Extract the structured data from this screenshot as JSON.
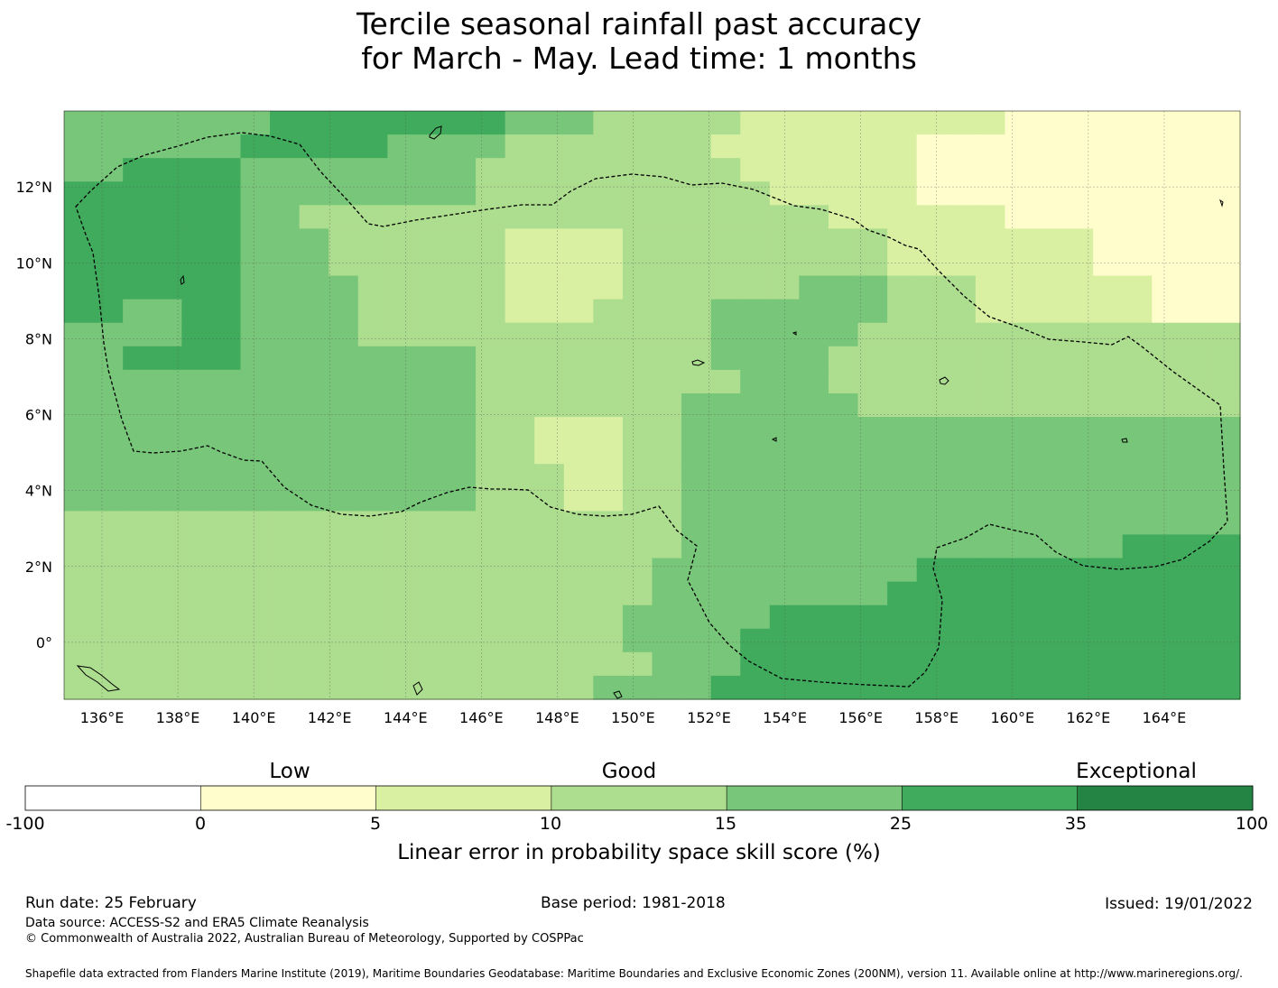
{
  "title": {
    "line1": "Tercile seasonal rainfall past accuracy",
    "line2": "for March - May. Lead time: 1 months"
  },
  "map": {
    "lon_range": [
      135,
      166
    ],
    "lat_range": [
      -1.5,
      14
    ],
    "cell_size_deg": 0.833,
    "x_ticks": [
      {
        "value": 136,
        "label": "136°E"
      },
      {
        "value": 138,
        "label": "138°E"
      },
      {
        "value": 140,
        "label": "140°E"
      },
      {
        "value": 142,
        "label": "142°E"
      },
      {
        "value": 144,
        "label": "144°E"
      },
      {
        "value": 146,
        "label": "146°E"
      },
      {
        "value": 148,
        "label": "148°E"
      },
      {
        "value": 150,
        "label": "150°E"
      },
      {
        "value": 152,
        "label": "152°E"
      },
      {
        "value": 154,
        "label": "154°E"
      },
      {
        "value": 156,
        "label": "156°E"
      },
      {
        "value": 158,
        "label": "158°E"
      },
      {
        "value": 160,
        "label": "160°E"
      },
      {
        "value": 162,
        "label": "162°E"
      },
      {
        "value": 164,
        "label": "164°E"
      }
    ],
    "y_ticks": [
      {
        "value": 0,
        "label": "0°"
      },
      {
        "value": 2,
        "label": "2°N"
      },
      {
        "value": 4,
        "label": "4°N"
      },
      {
        "value": 6,
        "label": "6°N"
      },
      {
        "value": 8,
        "label": "8°N"
      },
      {
        "value": 10,
        "label": "10°N"
      },
      {
        "value": 12,
        "label": "12°N"
      }
    ],
    "grid": [
      "4444444555555554443333322222222211111111",
      "4444445555544443333333222222211111111111",
      "4455554444444433333333322222211111111111",
      "5555554444444433333333332222211111111111",
      "5555554433333333333333333322222211111111",
      "5555554443333332222333333333222222211111",
      "5555554443333332222333333333222222211111",
      "5555554444333332222333333444333222222111",
      "5544554444333332223333444444333222222111",
      "4444554444333333333333444443333333333333",
      "4455554444444433333333444433333333333333",
      "4444444444444433333333344433333333333333",
      "4444444444444433333334444443333333333333",
      "4444444444444433222334444444444444444444",
      "4444444444444433222334444444444444444444",
      "4444444444444433322334444444444444444444",
      "4444444444444433322334444444444444444444",
      "3333333333333333333334444444444444444444",
      "3333333333333333333334444444444444445555",
      "3333333333333333333344444444455555555555",
      "3333333333333333333344444444555555555555",
      "3333333333333333333444445555555555555555",
      "3333333333333333333444455555555555555555",
      "3333333333333333333344455555555555555555",
      "3333333333333333334444555555555555555555"
    ]
  },
  "colorbar": {
    "categories": [
      {
        "label": "Low",
        "position": 0.21
      },
      {
        "label": "Good",
        "position": 0.5
      },
      {
        "label": "Exceptional",
        "position": 0.9
      }
    ],
    "colors": [
      "#ffffff",
      "#fffdcc",
      "#d9efa2",
      "#addd8e",
      "#78c679",
      "#41ab5d",
      "#238443"
    ],
    "ticks": [
      "-100",
      "0",
      "5",
      "10",
      "15",
      "25",
      "35",
      "100"
    ],
    "title": "Linear error in probability space skill score (%)"
  },
  "footer": {
    "run_date": "Run date: 25 February",
    "base_period": "Base period: 1981-2018",
    "issued": "Issued: 19/01/2022",
    "data_source": "Data source: ACCESS-S2 and ERA5 Climate Reanalysis",
    "copyright": "© Commonwealth of Australia 2022, Australian Bureau of Meteorology, Supported by COSPPac",
    "shapefile": "Shapefile data extracted from Flanders Marine Institute (2019), Maritime Boundaries Geodatabase: Maritime Boundaries and Exclusive Economic Zones (200NM), version 11. Available online at http://www.marineregions.org/."
  }
}
